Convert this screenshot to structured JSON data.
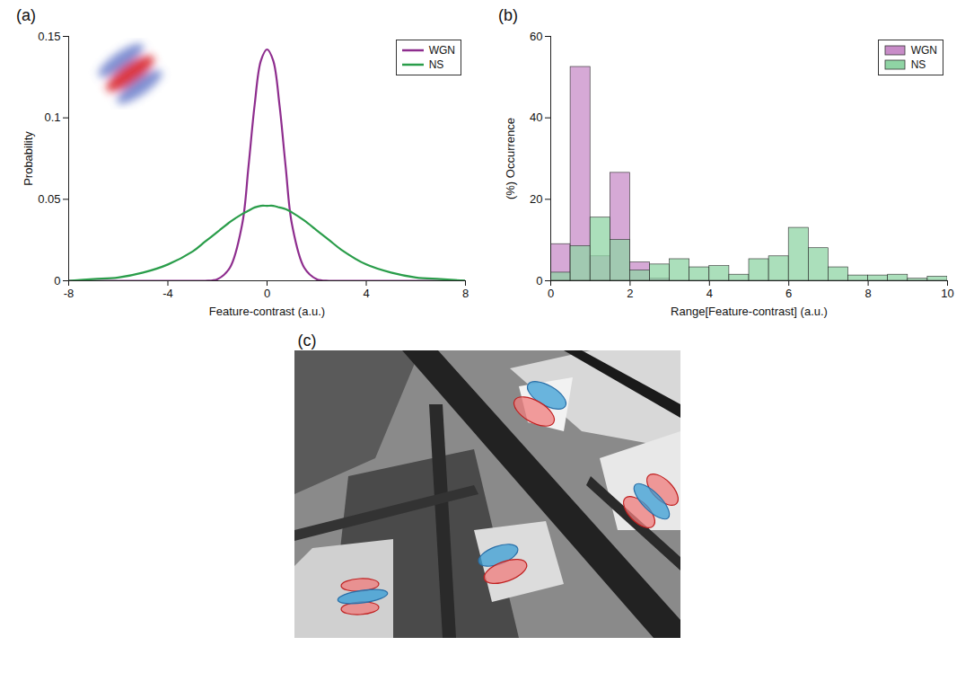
{
  "chart_data": [
    {
      "title": "(a)",
      "type": "line",
      "x_label": "Feature-contrast (a.u.)",
      "y_label": "Probability",
      "x": [
        -8,
        -7,
        -6,
        -5,
        -4,
        -3,
        -2.5,
        -2,
        -1.5,
        -1,
        -0.75,
        -0.5,
        -0.25,
        0,
        0.25,
        0.5,
        0.75,
        1,
        1.5,
        2,
        2.5,
        3,
        4,
        5,
        6,
        7,
        8
      ],
      "series": [
        {
          "name": "WGN",
          "color": "#8e2d8e",
          "values": [
            0,
            0,
            0,
            0,
            0,
            0,
            0,
            0.001,
            0.008,
            0.035,
            0.07,
            0.108,
            0.135,
            0.142,
            0.135,
            0.108,
            0.07,
            0.035,
            0.008,
            0.001,
            0,
            0,
            0,
            0,
            0,
            0,
            0
          ]
        },
        {
          "name": "NS",
          "color": "#2a9d4a",
          "values": [
            0,
            0.001,
            0.002,
            0.005,
            0.01,
            0.018,
            0.024,
            0.03,
            0.036,
            0.041,
            0.043,
            0.045,
            0.046,
            0.046,
            0.046,
            0.045,
            0.044,
            0.042,
            0.037,
            0.031,
            0.025,
            0.019,
            0.01,
            0.005,
            0.002,
            0.001,
            0
          ]
        }
      ],
      "xlim": [
        -8,
        8
      ],
      "xticks": [
        -8,
        -4,
        0,
        4,
        8
      ],
      "ylim": [
        0,
        0.15
      ],
      "yticks": [
        0,
        0.05,
        0.1,
        0.15
      ],
      "legend": "top-right"
    },
    {
      "title": "(b)",
      "type": "histogram",
      "x_label": "Range[Feature-contrast] (a.u.)",
      "y_label": "(%) Occurrence",
      "bins": [
        0,
        0.5,
        1,
        1.5,
        2,
        2.5,
        3,
        3.5,
        4,
        4.5,
        5,
        5.5,
        6,
        6.5,
        7,
        7.5,
        8,
        8.5,
        9,
        9.5,
        10
      ],
      "series": [
        {
          "name": "WGN",
          "color": "#c88cc8",
          "values": [
            9,
            52.5,
            6,
            26.5,
            4.5,
            0.5,
            0,
            0,
            0,
            0,
            0,
            0,
            0,
            0,
            0,
            0,
            0,
            0,
            0,
            0
          ]
        },
        {
          "name": "NS",
          "color": "#8fd4a4",
          "values": [
            2,
            8.5,
            15.5,
            10,
            2.5,
            4,
            5.3,
            3.3,
            3.6,
            1.5,
            5.3,
            6,
            13,
            8,
            3.3,
            1.3,
            1.3,
            1.5,
            0.5,
            1
          ]
        }
      ],
      "xlim": [
        0,
        10
      ],
      "xticks": [
        0,
        2,
        4,
        6,
        8,
        10
      ],
      "ylim": [
        0,
        60
      ],
      "yticks": [
        0,
        20,
        40,
        60
      ],
      "legend": "top-right"
    }
  ],
  "image": {
    "title": "(c)"
  }
}
